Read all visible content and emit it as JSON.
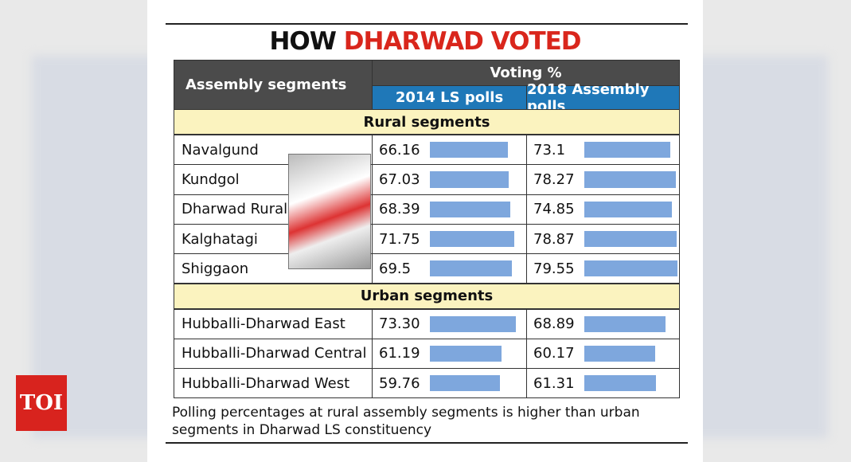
{
  "brand": "TOI",
  "title": {
    "lead": "HOW",
    "highlight": "DHARWAD VOTED"
  },
  "table": {
    "header": {
      "segment": "Assembly segments",
      "voting": "Voting %",
      "col1": "2014 LS polls",
      "col2": "2018 Assembly polls"
    },
    "groups": [
      {
        "label": "Rural segments",
        "rows": [
          [
            "Navalgund",
            "66.16",
            "73.1"
          ],
          [
            "Kundgol",
            "67.03",
            "78.27"
          ],
          [
            "Dharwad Rural",
            "68.39",
            "74.85"
          ],
          [
            "Kalghatagi",
            "71.75",
            "78.87"
          ],
          [
            "Shiggaon",
            "69.5",
            "79.55"
          ]
        ]
      },
      {
        "label": "Urban segments",
        "rows": [
          [
            "Hubballi-Dharwad East",
            "73.30",
            "68.89"
          ],
          [
            "Hubballi-Dharwad Central",
            "61.19",
            "60.17"
          ],
          [
            "Hubballi-Dharwad West",
            "59.76",
            "61.31"
          ]
        ]
      }
    ]
  },
  "note": "Polling percentages at rural assembly segments is higher than urban segments in Dharwad LS constituency"
}
